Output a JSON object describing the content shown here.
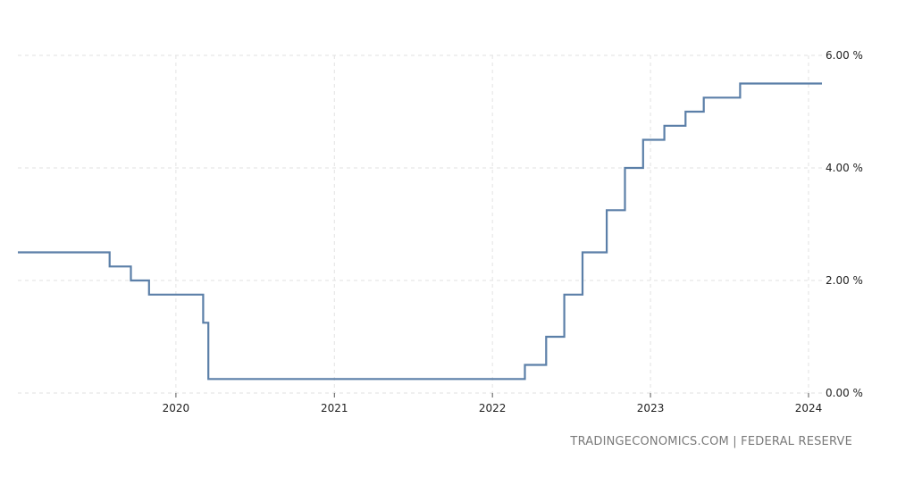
{
  "chart_data": {
    "type": "line",
    "step": true,
    "xlim": [
      "2019-01-01",
      "2024-02-01"
    ],
    "ylim": [
      0,
      6
    ],
    "grid": true,
    "x_ticks": [
      "2020",
      "2021",
      "2022",
      "2023",
      "2024"
    ],
    "y_ticks": [
      "0.00 %",
      "2.00 %",
      "4.00 %",
      "6.00 %"
    ],
    "color": "#5b7fa8",
    "series": [
      {
        "points": [
          [
            "2019-01-01",
            2.5
          ],
          [
            "2019-08-01",
            2.25
          ],
          [
            "2019-09-19",
            2.0
          ],
          [
            "2019-10-31",
            1.75
          ],
          [
            "2020-03-04",
            1.25
          ],
          [
            "2020-03-16",
            0.25
          ],
          [
            "2022-03-17",
            0.5
          ],
          [
            "2022-05-05",
            1.0
          ],
          [
            "2022-06-16",
            1.75
          ],
          [
            "2022-07-28",
            2.5
          ],
          [
            "2022-09-22",
            3.25
          ],
          [
            "2022-11-03",
            4.0
          ],
          [
            "2022-12-15",
            4.5
          ],
          [
            "2023-02-02",
            4.75
          ],
          [
            "2023-03-23",
            5.0
          ],
          [
            "2023-05-04",
            5.25
          ],
          [
            "2023-07-27",
            5.5
          ],
          [
            "2024-02-01",
            5.5
          ]
        ]
      }
    ]
  },
  "source_text": "TRADINGECONOMICS.COM | FEDERAL RESERVE"
}
